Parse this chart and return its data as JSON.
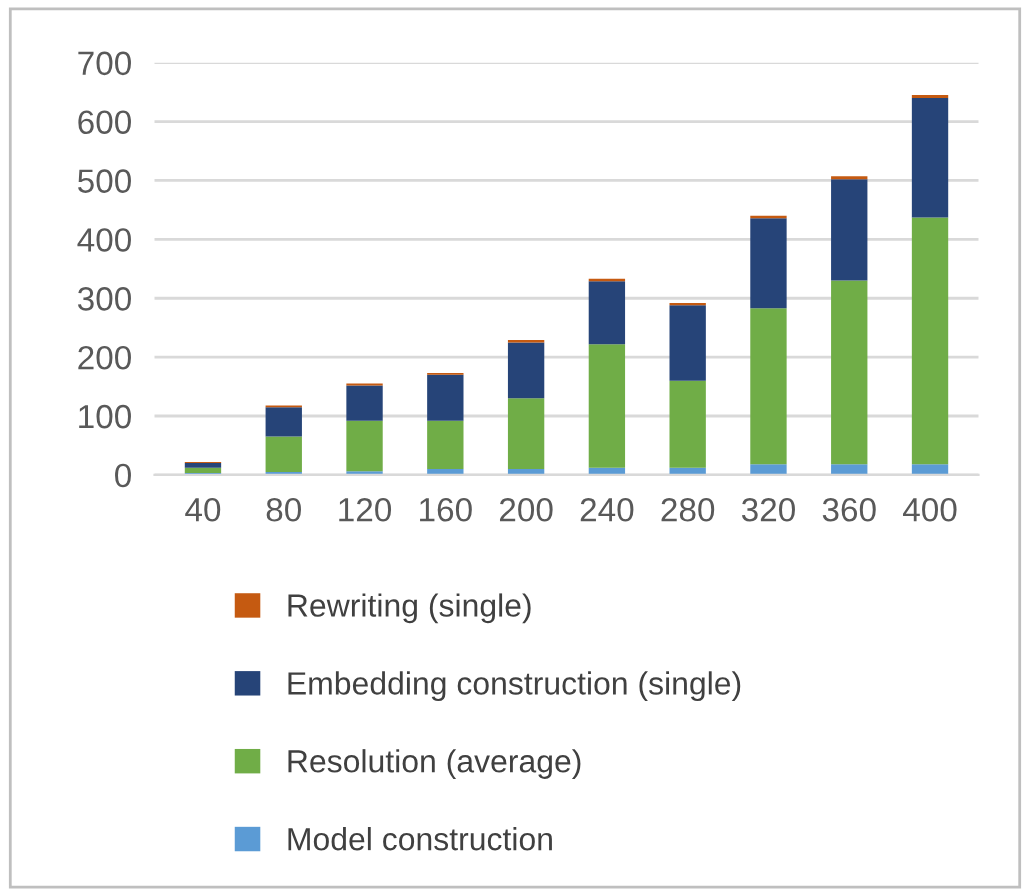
{
  "chart_data": {
    "type": "bar",
    "stacked": true,
    "categories": [
      "40",
      "80",
      "120",
      "160",
      "200",
      "240",
      "280",
      "320",
      "360",
      "400"
    ],
    "series": [
      {
        "name": "Model construction",
        "color": "#5b9bd5",
        "values": [
          3,
          5,
          6,
          10,
          10,
          12,
          12,
          18,
          18,
          18
        ]
      },
      {
        "name": "Resolution (average)",
        "color": "#70ad47",
        "values": [
          9,
          60,
          86,
          82,
          120,
          210,
          148,
          265,
          312,
          419
        ]
      },
      {
        "name": "Embedding construction (single)",
        "color": "#264478",
        "values": [
          8,
          50,
          60,
          78,
          95,
          107,
          128,
          153,
          172,
          203
        ]
      },
      {
        "name": "Rewriting (single)",
        "color": "#c55a11",
        "values": [
          2,
          3,
          3,
          3,
          4,
          4,
          4,
          4,
          5,
          5
        ]
      }
    ],
    "ylim": [
      0,
      700
    ],
    "yticks": [
      0,
      100,
      200,
      300,
      400,
      500,
      600,
      700
    ],
    "grid": "y",
    "legend": "bottom"
  }
}
